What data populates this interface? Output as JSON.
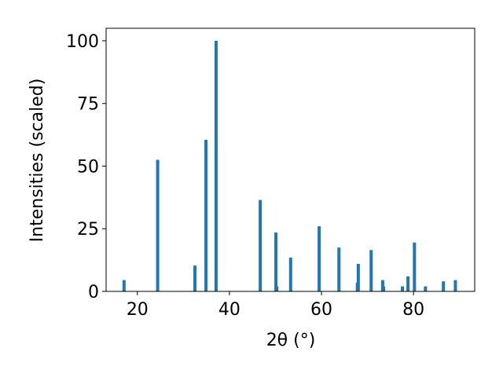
{
  "chart_data": {
    "type": "bar",
    "xlabel": "2θ (°)",
    "ylabel": "Intensities (scaled)",
    "x": [
      17.1,
      24.4,
      32.5,
      34.9,
      37.1,
      46.7,
      50.1,
      50.3,
      53.3,
      59.5,
      63.8,
      67.8,
      68.0,
      70.8,
      73.3,
      73.5,
      77.6,
      78.8,
      80.2,
      82.6,
      86.5,
      89.1
    ],
    "values": [
      4.5,
      52.5,
      10.3,
      60.5,
      100,
      36.5,
      23.5,
      2,
      13.5,
      26,
      17.5,
      3.5,
      11,
      16.5,
      4.5,
      2,
      2,
      6,
      19.5,
      2,
      4,
      4.5
    ],
    "color": "#1f77b4",
    "xlim": [
      13.2,
      93.3
    ],
    "ylim": [
      0,
      105
    ],
    "xticks": [
      20,
      40,
      60,
      80
    ],
    "yticks": [
      0,
      25,
      50,
      75,
      100
    ],
    "grid": false
  }
}
